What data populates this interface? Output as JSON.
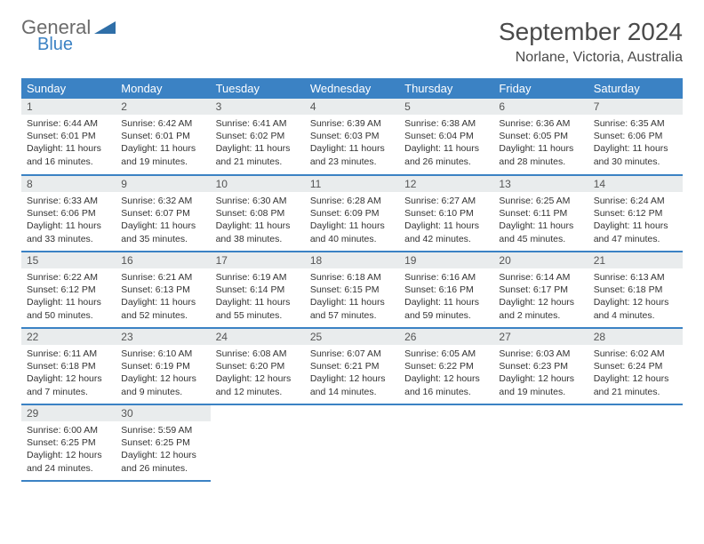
{
  "logo": {
    "text1": "General",
    "text2": "Blue",
    "color1": "#6b6b6b",
    "color2": "#3b82c4"
  },
  "header": {
    "month": "September 2024",
    "location": "Norlane, Victoria, Australia"
  },
  "colors": {
    "headerBar": "#3b82c4",
    "dayNumBg": "#e9eced",
    "text": "#333333",
    "rule": "#3b82c4"
  },
  "weekdays": [
    "Sunday",
    "Monday",
    "Tuesday",
    "Wednesday",
    "Thursday",
    "Friday",
    "Saturday"
  ],
  "weeks": [
    [
      {
        "n": "1",
        "sr": "Sunrise: 6:44 AM",
        "ss": "Sunset: 6:01 PM",
        "d1": "Daylight: 11 hours",
        "d2": "and 16 minutes."
      },
      {
        "n": "2",
        "sr": "Sunrise: 6:42 AM",
        "ss": "Sunset: 6:01 PM",
        "d1": "Daylight: 11 hours",
        "d2": "and 19 minutes."
      },
      {
        "n": "3",
        "sr": "Sunrise: 6:41 AM",
        "ss": "Sunset: 6:02 PM",
        "d1": "Daylight: 11 hours",
        "d2": "and 21 minutes."
      },
      {
        "n": "4",
        "sr": "Sunrise: 6:39 AM",
        "ss": "Sunset: 6:03 PM",
        "d1": "Daylight: 11 hours",
        "d2": "and 23 minutes."
      },
      {
        "n": "5",
        "sr": "Sunrise: 6:38 AM",
        "ss": "Sunset: 6:04 PM",
        "d1": "Daylight: 11 hours",
        "d2": "and 26 minutes."
      },
      {
        "n": "6",
        "sr": "Sunrise: 6:36 AM",
        "ss": "Sunset: 6:05 PM",
        "d1": "Daylight: 11 hours",
        "d2": "and 28 minutes."
      },
      {
        "n": "7",
        "sr": "Sunrise: 6:35 AM",
        "ss": "Sunset: 6:06 PM",
        "d1": "Daylight: 11 hours",
        "d2": "and 30 minutes."
      }
    ],
    [
      {
        "n": "8",
        "sr": "Sunrise: 6:33 AM",
        "ss": "Sunset: 6:06 PM",
        "d1": "Daylight: 11 hours",
        "d2": "and 33 minutes."
      },
      {
        "n": "9",
        "sr": "Sunrise: 6:32 AM",
        "ss": "Sunset: 6:07 PM",
        "d1": "Daylight: 11 hours",
        "d2": "and 35 minutes."
      },
      {
        "n": "10",
        "sr": "Sunrise: 6:30 AM",
        "ss": "Sunset: 6:08 PM",
        "d1": "Daylight: 11 hours",
        "d2": "and 38 minutes."
      },
      {
        "n": "11",
        "sr": "Sunrise: 6:28 AM",
        "ss": "Sunset: 6:09 PM",
        "d1": "Daylight: 11 hours",
        "d2": "and 40 minutes."
      },
      {
        "n": "12",
        "sr": "Sunrise: 6:27 AM",
        "ss": "Sunset: 6:10 PM",
        "d1": "Daylight: 11 hours",
        "d2": "and 42 minutes."
      },
      {
        "n": "13",
        "sr": "Sunrise: 6:25 AM",
        "ss": "Sunset: 6:11 PM",
        "d1": "Daylight: 11 hours",
        "d2": "and 45 minutes."
      },
      {
        "n": "14",
        "sr": "Sunrise: 6:24 AM",
        "ss": "Sunset: 6:12 PM",
        "d1": "Daylight: 11 hours",
        "d2": "and 47 minutes."
      }
    ],
    [
      {
        "n": "15",
        "sr": "Sunrise: 6:22 AM",
        "ss": "Sunset: 6:12 PM",
        "d1": "Daylight: 11 hours",
        "d2": "and 50 minutes."
      },
      {
        "n": "16",
        "sr": "Sunrise: 6:21 AM",
        "ss": "Sunset: 6:13 PM",
        "d1": "Daylight: 11 hours",
        "d2": "and 52 minutes."
      },
      {
        "n": "17",
        "sr": "Sunrise: 6:19 AM",
        "ss": "Sunset: 6:14 PM",
        "d1": "Daylight: 11 hours",
        "d2": "and 55 minutes."
      },
      {
        "n": "18",
        "sr": "Sunrise: 6:18 AM",
        "ss": "Sunset: 6:15 PM",
        "d1": "Daylight: 11 hours",
        "d2": "and 57 minutes."
      },
      {
        "n": "19",
        "sr": "Sunrise: 6:16 AM",
        "ss": "Sunset: 6:16 PM",
        "d1": "Daylight: 11 hours",
        "d2": "and 59 minutes."
      },
      {
        "n": "20",
        "sr": "Sunrise: 6:14 AM",
        "ss": "Sunset: 6:17 PM",
        "d1": "Daylight: 12 hours",
        "d2": "and 2 minutes."
      },
      {
        "n": "21",
        "sr": "Sunrise: 6:13 AM",
        "ss": "Sunset: 6:18 PM",
        "d1": "Daylight: 12 hours",
        "d2": "and 4 minutes."
      }
    ],
    [
      {
        "n": "22",
        "sr": "Sunrise: 6:11 AM",
        "ss": "Sunset: 6:18 PM",
        "d1": "Daylight: 12 hours",
        "d2": "and 7 minutes."
      },
      {
        "n": "23",
        "sr": "Sunrise: 6:10 AM",
        "ss": "Sunset: 6:19 PM",
        "d1": "Daylight: 12 hours",
        "d2": "and 9 minutes."
      },
      {
        "n": "24",
        "sr": "Sunrise: 6:08 AM",
        "ss": "Sunset: 6:20 PM",
        "d1": "Daylight: 12 hours",
        "d2": "and 12 minutes."
      },
      {
        "n": "25",
        "sr": "Sunrise: 6:07 AM",
        "ss": "Sunset: 6:21 PM",
        "d1": "Daylight: 12 hours",
        "d2": "and 14 minutes."
      },
      {
        "n": "26",
        "sr": "Sunrise: 6:05 AM",
        "ss": "Sunset: 6:22 PM",
        "d1": "Daylight: 12 hours",
        "d2": "and 16 minutes."
      },
      {
        "n": "27",
        "sr": "Sunrise: 6:03 AM",
        "ss": "Sunset: 6:23 PM",
        "d1": "Daylight: 12 hours",
        "d2": "and 19 minutes."
      },
      {
        "n": "28",
        "sr": "Sunrise: 6:02 AM",
        "ss": "Sunset: 6:24 PM",
        "d1": "Daylight: 12 hours",
        "d2": "and 21 minutes."
      }
    ],
    [
      {
        "n": "29",
        "sr": "Sunrise: 6:00 AM",
        "ss": "Sunset: 6:25 PM",
        "d1": "Daylight: 12 hours",
        "d2": "and 24 minutes."
      },
      {
        "n": "30",
        "sr": "Sunrise: 5:59 AM",
        "ss": "Sunset: 6:25 PM",
        "d1": "Daylight: 12 hours",
        "d2": "and 26 minutes."
      },
      null,
      null,
      null,
      null,
      null
    ]
  ]
}
